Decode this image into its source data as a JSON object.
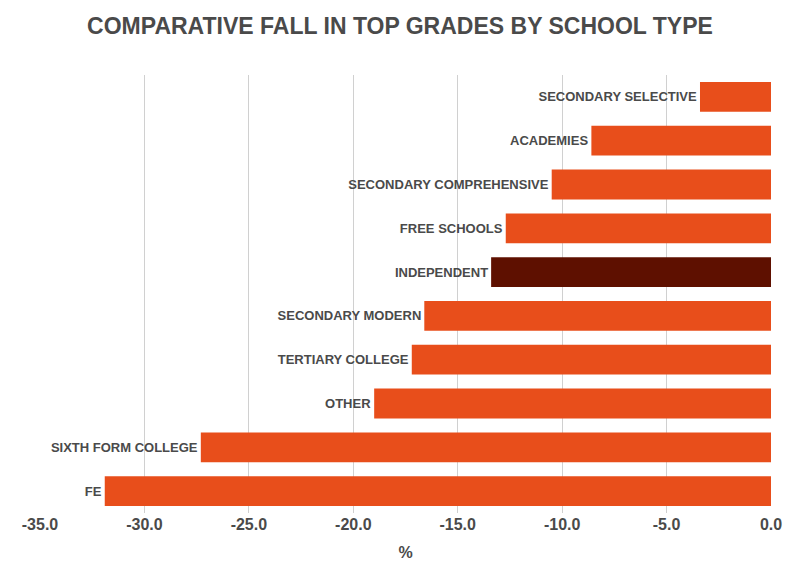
{
  "chart_data": {
    "type": "bar",
    "orientation": "horizontal",
    "title": "COMPARATIVE FALL IN TOP GRADES BY SCHOOL TYPE",
    "x_label": "%",
    "categories": [
      "SECONDARY SELECTIVE",
      "ACADEMIES",
      "SECONDARY COMPREHENSIVE",
      "FREE SCHOOLS",
      "INDEPENDENT",
      "SECONDARY MODERN",
      "TERTIARY COLLEGE",
      "OTHER",
      "SIXTH FORM COLLEGE",
      "FE"
    ],
    "values": [
      -3.4,
      -8.6,
      -10.5,
      -12.7,
      -13.4,
      -16.6,
      -17.2,
      -19.0,
      -27.3,
      -31.9
    ],
    "colors": [
      "#e84e1b",
      "#e84e1b",
      "#e84e1b",
      "#e84e1b",
      "#5e1000",
      "#e84e1b",
      "#e84e1b",
      "#e84e1b",
      "#e84e1b",
      "#e84e1b"
    ],
    "xlim": [
      -35,
      0
    ],
    "xticks": [
      {
        "value": -35,
        "label": "-35.0"
      },
      {
        "value": -30,
        "label": "-30.0"
      },
      {
        "value": -25,
        "label": "-25.0"
      },
      {
        "value": -20,
        "label": "-20.0"
      },
      {
        "value": -15,
        "label": "-15.0"
      },
      {
        "value": -10,
        "label": "-10.0"
      },
      {
        "value": -5,
        "label": "-5.0"
      },
      {
        "value": 0,
        "label": "0.0"
      }
    ],
    "grid": true,
    "tick_labels": "x"
  }
}
